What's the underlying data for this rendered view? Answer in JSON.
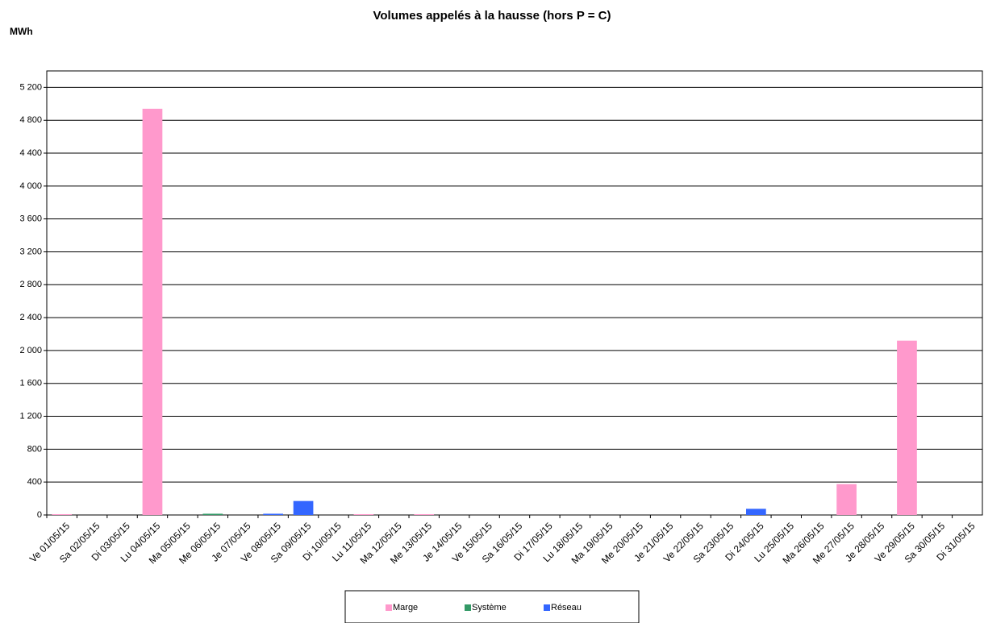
{
  "chart_data": {
    "type": "bar",
    "title": "Volumes appelés à la hausse (hors P = C)",
    "y_label": "MWh",
    "categories": [
      "Ve 01/05/15",
      "Sa 02/05/15",
      "Di 03/05/15",
      "Lu 04/05/15",
      "Ma 05/05/15",
      "Me 06/05/15",
      "Je 07/05/15",
      "Ve 08/05/15",
      "Sa 09/05/15",
      "Di 10/05/15",
      "Lu 11/05/15",
      "Ma 12/05/15",
      "Me 13/05/15",
      "Je 14/05/15",
      "Ve 15/05/15",
      "Sa 16/05/15",
      "Di 17/05/15",
      "Lu 18/05/15",
      "Ma 19/05/15",
      "Me 20/05/15",
      "Je 21/05/15",
      "Ve 22/05/15",
      "Sa 23/05/15",
      "Di 24/05/15",
      "Lu 25/05/15",
      "Ma 26/05/15",
      "Me 27/05/15",
      "Je 28/05/15",
      "Ve 29/05/15",
      "Sa 30/05/15",
      "Di 31/05/15"
    ],
    "series": [
      {
        "name": "Marge",
        "color": "#ff99cc",
        "values": [
          10,
          0,
          0,
          4940,
          0,
          0,
          0,
          0,
          0,
          0,
          10,
          0,
          10,
          0,
          0,
          0,
          0,
          0,
          0,
          0,
          0,
          0,
          0,
          0,
          0,
          0,
          375,
          0,
          2120,
          0,
          0
        ]
      },
      {
        "name": "Système",
        "color": "#339966",
        "values": [
          0,
          0,
          0,
          0,
          0,
          15,
          0,
          0,
          0,
          0,
          0,
          0,
          0,
          0,
          0,
          0,
          0,
          0,
          0,
          0,
          0,
          0,
          0,
          0,
          0,
          0,
          0,
          0,
          0,
          0,
          0
        ]
      },
      {
        "name": "Réseau",
        "color": "#3366ff",
        "values": [
          0,
          0,
          0,
          0,
          0,
          0,
          0,
          15,
          170,
          0,
          0,
          0,
          0,
          0,
          0,
          0,
          0,
          0,
          0,
          0,
          0,
          0,
          0,
          75,
          0,
          0,
          0,
          0,
          0,
          0,
          0
        ]
      }
    ],
    "ylim": [
      0,
      5400
    ],
    "yticks": [
      0,
      400,
      800,
      {
        "value": 1200,
        "label": "1 200"
      },
      {
        "value": 1600,
        "label": "1 600"
      },
      {
        "value": 2000,
        "label": "2 000"
      },
      {
        "value": 2400,
        "label": "2 400"
      },
      {
        "value": 2800,
        "label": "2 800"
      },
      {
        "value": 3200,
        "label": "3 200"
      },
      {
        "value": 3600,
        "label": "3 600"
      },
      {
        "value": 4000,
        "label": "4 000"
      },
      {
        "value": 4400,
        "label": "4 400"
      },
      {
        "value": 4800,
        "label": "4 800"
      },
      {
        "value": 5200,
        "label": "5 200"
      }
    ],
    "grid": true
  }
}
